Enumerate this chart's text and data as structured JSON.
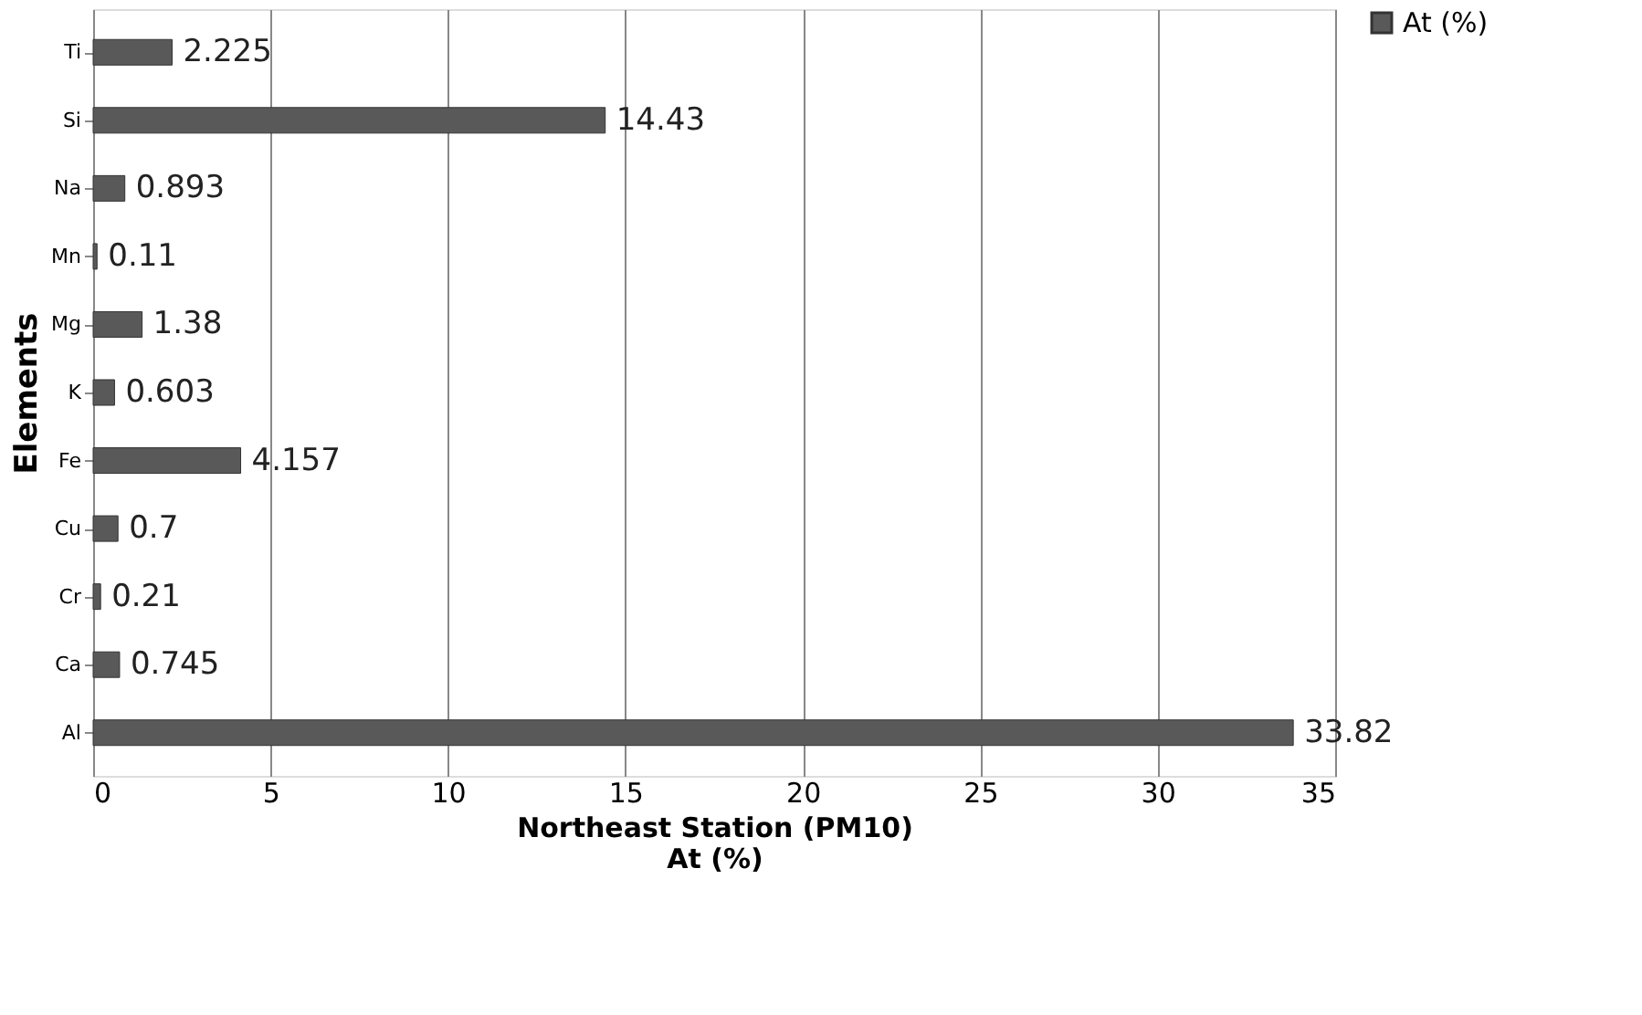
{
  "chart_data": {
    "type": "bar",
    "orientation": "horizontal",
    "categories": [
      "Ti",
      "Si",
      "Na",
      "Mn",
      "Mg",
      "K",
      "Fe",
      "Cu",
      "Cr",
      "Ca",
      "Al"
    ],
    "series": [
      {
        "name": "At (%)",
        "color": "#595959",
        "values": [
          2.225,
          14.43,
          0.893,
          0.11,
          1.38,
          0.603,
          4.157,
          0.7,
          0.21,
          0.745,
          33.82
        ]
      }
    ],
    "xlabel": "Northeast Station (PM10)\nAt (%)",
    "ylabel": "Elements",
    "xlim": [
      0,
      35
    ],
    "xticks": [
      0,
      5,
      10,
      15,
      20,
      25,
      30,
      35
    ],
    "grid": "x",
    "legend": "right",
    "data_labels": true
  }
}
